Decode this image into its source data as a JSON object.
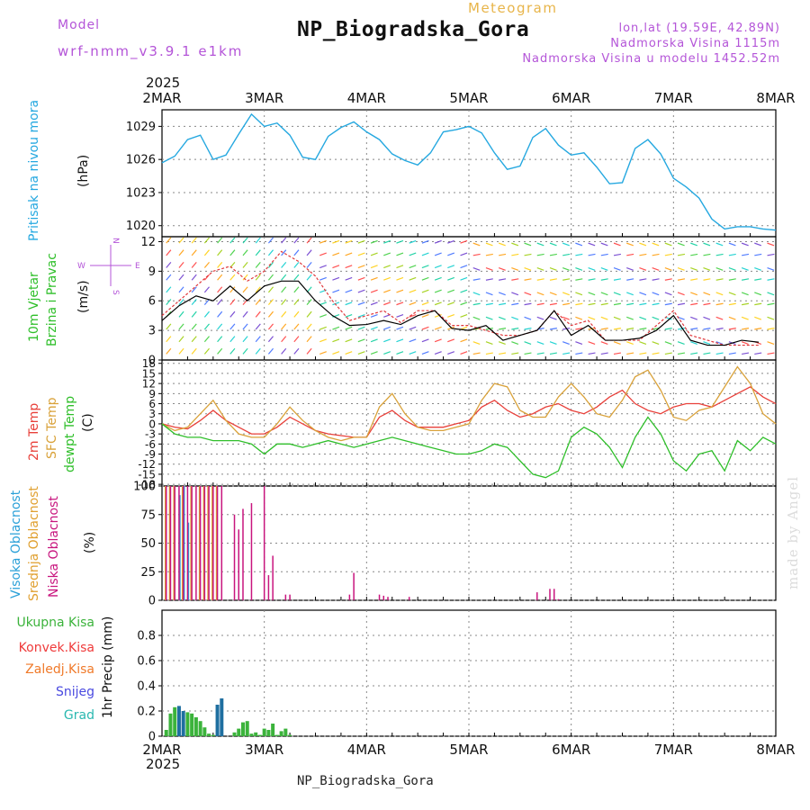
{
  "header": {
    "model_label": "Model",
    "model_name": "wrf-nmm_v3.9.1 e1km",
    "meteogram_label": "Meteogram",
    "station_title": "NP_Biogradska_Gora",
    "lonlat": "lon,lat (19.59E, 42.89N)",
    "altitude": "Nadmorska Visina 1115m",
    "model_altitude": "Nadmorska Visina u modelu 1452.52m"
  },
  "footer": {
    "station": "NP_Biogradska_Gora",
    "credit": "made by Angel"
  },
  "colors": {
    "pressure": "#25a8e0",
    "wind_speed": "#000000",
    "gust": "#e0393c",
    "temp2m": "#e8403a",
    "sfc_temp": "#d9a23a",
    "dewpt": "#2fbf2a",
    "cloud_high": "#2aa0d8",
    "cloud_mid": "#e0a030",
    "cloud_low": "#c8157e",
    "label_pink": "#b455d8",
    "precip_total": "#3bb33b",
    "precip_conv": "#ef3a3a",
    "precip_frz": "#f07a2a",
    "precip_snow": "#4a4ae0",
    "precip_grad": "#2ab8b0"
  },
  "chart_data": [
    {
      "type": "line",
      "panel": "pressure",
      "x_top_labels": {
        "year": "2025",
        "days": [
          "2MAR",
          "3MAR",
          "4MAR",
          "5MAR",
          "6MAR",
          "7MAR",
          "8MAR"
        ]
      },
      "ylabel_main": "Pritisak na nivou mora",
      "ylabel_unit": "(hPa)",
      "yticks": [
        "1020",
        "1023",
        "1026",
        "1029"
      ],
      "ylim": [
        1019,
        1030.5
      ],
      "xlim": [
        0,
        144
      ],
      "series": [
        {
          "x": [
            0,
            3,
            6,
            9,
            12,
            15,
            18,
            21,
            24,
            27,
            30,
            33,
            36,
            39,
            42,
            45,
            48,
            51,
            54,
            57,
            60,
            63,
            66,
            69,
            72,
            75,
            78,
            81,
            84,
            87,
            90,
            93,
            96,
            99,
            102,
            105,
            108,
            111,
            114,
            117,
            120,
            123,
            126,
            129,
            132,
            135,
            138,
            141,
            144
          ],
          "values": [
            1025.7,
            1026.3,
            1027.8,
            1028.2,
            1026.0,
            1026.4,
            1028.3,
            1030.1,
            1029.0,
            1029.3,
            1028.2,
            1026.2,
            1026.0,
            1028.1,
            1028.9,
            1029.4,
            1028.5,
            1027.8,
            1026.5,
            1025.9,
            1025.5,
            1026.6,
            1028.5,
            1028.7,
            1029.0,
            1028.4,
            1026.6,
            1025.1,
            1025.4,
            1028.0,
            1028.8,
            1027.3,
            1026.4,
            1026.6,
            1025.3,
            1023.8,
            1023.9,
            1027.0,
            1027.8,
            1026.5,
            1024.3,
            1023.5,
            1022.5,
            1020.6,
            1019.7,
            1019.9,
            1019.9,
            1019.7,
            1019.6
          ]
        }
      ]
    },
    {
      "type": "line",
      "panel": "wind",
      "ylabel_main_1": "10m Vjetar",
      "ylabel_main_2": "Brzina i Pravac",
      "ylabel_unit": "(m/s)",
      "compass": {
        "n": "N",
        "s": "S",
        "e": "E",
        "w": "W"
      },
      "yticks": [
        "0",
        "3",
        "6",
        "9",
        "12"
      ],
      "ylim": [
        0,
        12.5
      ],
      "series": [
        {
          "name": "speed",
          "x": [
            0,
            4,
            8,
            12,
            16,
            20,
            24,
            28,
            32,
            36,
            40,
            44,
            48,
            52,
            56,
            60,
            64,
            68,
            72,
            76,
            80,
            84,
            88,
            92,
            96,
            100,
            104,
            108,
            112,
            116,
            120,
            124,
            128,
            132,
            136,
            140
          ],
          "values": [
            4.0,
            5.5,
            6.5,
            6.0,
            7.5,
            6.0,
            7.5,
            8.0,
            8.0,
            6.0,
            4.5,
            3.5,
            3.6,
            4.0,
            3.6,
            4.5,
            5.0,
            3.2,
            3.0,
            3.5,
            2.0,
            2.5,
            3.0,
            5.0,
            2.5,
            3.5,
            2.0,
            2.0,
            2.2,
            3.0,
            4.5,
            2.0,
            1.5,
            1.5,
            2.0,
            1.8
          ]
        },
        {
          "name": "gust",
          "x": [
            0,
            4,
            8,
            12,
            16,
            20,
            24,
            28,
            32,
            36,
            40,
            44,
            48,
            52,
            56,
            60,
            64,
            68,
            72,
            76,
            80,
            84,
            88,
            92,
            96,
            100,
            104,
            108,
            112,
            116,
            120,
            124,
            128,
            132,
            136,
            140
          ],
          "values": [
            4.5,
            6.0,
            7.5,
            9.0,
            9.5,
            8.0,
            9.0,
            11.0,
            10.0,
            8.5,
            6.0,
            4.0,
            4.5,
            5.0,
            3.8,
            5.0,
            5.0,
            3.5,
            3.5,
            3.0,
            2.5,
            2.5,
            3.0,
            5.0,
            3.5,
            4.0,
            2.0,
            2.0,
            2.0,
            3.5,
            5.0,
            2.5,
            2.0,
            1.5,
            1.5,
            1.5
          ]
        }
      ]
    },
    {
      "type": "line",
      "panel": "temperature",
      "ylabel_1": "2m Temp",
      "ylabel_2": "SFC Temp",
      "ylabel_3": "dewpt Temp",
      "ylabel_unit": "(C)",
      "yticks": [
        "-18",
        "-15",
        "-12",
        "-9",
        "-6",
        "-3",
        "0",
        "3",
        "6",
        "9",
        "12",
        "15",
        "18"
      ],
      "ylim": [
        -18.5,
        19
      ],
      "series": [
        {
          "name": "2m",
          "x": [
            0,
            3,
            6,
            9,
            12,
            15,
            18,
            21,
            24,
            27,
            30,
            33,
            36,
            39,
            42,
            45,
            48,
            51,
            54,
            57,
            60,
            63,
            66,
            69,
            72,
            75,
            78,
            81,
            84,
            87,
            90,
            93,
            96,
            99,
            102,
            105,
            108,
            111,
            114,
            117,
            120,
            123,
            126,
            129,
            132,
            135,
            138,
            141,
            144
          ],
          "values": [
            0,
            -1,
            -1.5,
            1,
            4,
            1,
            -1,
            -3,
            -3,
            -1,
            2,
            0,
            -2,
            -3,
            -3.5,
            -4,
            -4,
            2,
            4,
            1,
            -1,
            -1,
            -1,
            0,
            1,
            5,
            7,
            4,
            2,
            3,
            5,
            6,
            4,
            3,
            5,
            8,
            10,
            6,
            4,
            3,
            5,
            6,
            6,
            5,
            7,
            9,
            11,
            8,
            6
          ]
        },
        {
          "name": "sfc",
          "x": [
            0,
            3,
            6,
            9,
            12,
            15,
            18,
            21,
            24,
            27,
            30,
            33,
            36,
            39,
            42,
            45,
            48,
            51,
            54,
            57,
            60,
            63,
            66,
            69,
            72,
            75,
            78,
            81,
            84,
            87,
            90,
            93,
            96,
            99,
            102,
            105,
            108,
            111,
            114,
            117,
            120,
            123,
            126,
            129,
            132,
            135,
            138,
            141,
            144
          ],
          "values": [
            0,
            -2,
            -1,
            3,
            7,
            1,
            -3,
            -4,
            -4,
            0,
            5,
            1,
            -2,
            -4,
            -5,
            -4,
            -4,
            5,
            9,
            3,
            -1,
            -2,
            -2,
            -1,
            0,
            7,
            12,
            11,
            4,
            2,
            2,
            8,
            12,
            8,
            3,
            2,
            7,
            14,
            16,
            10,
            2,
            1,
            4,
            5,
            11,
            17,
            12,
            3,
            0
          ]
        },
        {
          "name": "dewpt",
          "x": [
            0,
            3,
            6,
            9,
            12,
            15,
            18,
            21,
            24,
            27,
            30,
            33,
            36,
            39,
            42,
            45,
            48,
            51,
            54,
            57,
            60,
            63,
            66,
            69,
            72,
            75,
            78,
            81,
            84,
            87,
            90,
            93,
            96,
            99,
            102,
            105,
            108,
            111,
            114,
            117,
            120,
            123,
            126,
            129,
            132,
            135,
            138,
            141,
            144
          ],
          "values": [
            0,
            -3,
            -4,
            -4,
            -5,
            -5,
            -5,
            -6,
            -9,
            -6,
            -6,
            -7,
            -6,
            -5,
            -6,
            -7,
            -6,
            -5,
            -4,
            -5,
            -6,
            -7,
            -8,
            -9,
            -9,
            -8,
            -6,
            -7,
            -11,
            -15,
            -16,
            -14,
            -4,
            -1,
            -3,
            -7,
            -13,
            -4,
            2,
            -3,
            -11,
            -14,
            -9,
            -8,
            -14,
            -5,
            -8,
            -4,
            -6
          ]
        }
      ]
    },
    {
      "type": "bar",
      "panel": "clouds",
      "ylabel_1": "Visoka Oblacnost",
      "ylabel_2": "Srednja Oblacnost",
      "ylabel_3": "Niska Oblacnost",
      "ylabel_unit": "(%)",
      "yticks": [
        "0",
        "25",
        "50",
        "75",
        "100"
      ],
      "ylim": [
        0,
        100
      ],
      "series": [
        {
          "name": "low",
          "x": [
            1,
            2,
            3,
            4,
            5,
            6,
            7,
            8,
            9,
            10,
            11,
            12,
            13,
            14,
            17,
            18,
            19,
            21,
            24,
            25,
            26,
            29,
            30,
            44,
            45,
            51,
            52,
            53,
            58,
            88,
            91,
            92,
            93
          ],
          "values": [
            100,
            100,
            100,
            100,
            100,
            100,
            100,
            100,
            100,
            100,
            100,
            100,
            100,
            100,
            75,
            62,
            80,
            85,
            100,
            22,
            39,
            5,
            5,
            5,
            24,
            5,
            4,
            3,
            3,
            7,
            10,
            10,
            1
          ]
        },
        {
          "name": "mid",
          "x": [
            1,
            2,
            3,
            5,
            7,
            9,
            10,
            11,
            12,
            13
          ],
          "values": [
            100,
            100,
            100,
            100,
            100,
            100,
            100,
            100,
            100,
            100
          ]
        },
        {
          "name": "high",
          "x": [
            4,
            5,
            6
          ],
          "values": [
            92,
            100,
            68
          ]
        }
      ]
    },
    {
      "type": "bar",
      "panel": "precip",
      "legend": [
        "Ukupna Kisa",
        "Konvek.Kisa",
        "Zaledj.Kisa",
        "Snijeg",
        "Grad"
      ],
      "ylabel": "1hr Precip (mm)",
      "yticks": [
        "0",
        "0.2",
        "0.4",
        "0.6",
        "0.8"
      ],
      "ylim": [
        0,
        1.0
      ],
      "x_bottom_labels": {
        "year": "2025",
        "days": [
          "2MAR",
          "3MAR",
          "4MAR",
          "5MAR",
          "6MAR",
          "7MAR",
          "8MAR"
        ]
      },
      "series": [
        {
          "name": "precip",
          "x": [
            1,
            2,
            3,
            4,
            5,
            6,
            7,
            8,
            9,
            10,
            11,
            12,
            13,
            14,
            17,
            18,
            19,
            20,
            21,
            22,
            23,
            24,
            25,
            26,
            27,
            28,
            29,
            30
          ],
          "values": [
            0.05,
            0.18,
            0.23,
            0.24,
            0.2,
            0.19,
            0.18,
            0.15,
            0.12,
            0.07,
            0.02,
            0.01,
            0.25,
            0.3,
            0.03,
            0.06,
            0.11,
            0.12,
            0.02,
            0.03,
            0.01,
            0.06,
            0.05,
            0.1,
            0.01,
            0.04,
            0.06,
            0.01
          ]
        }
      ]
    }
  ]
}
